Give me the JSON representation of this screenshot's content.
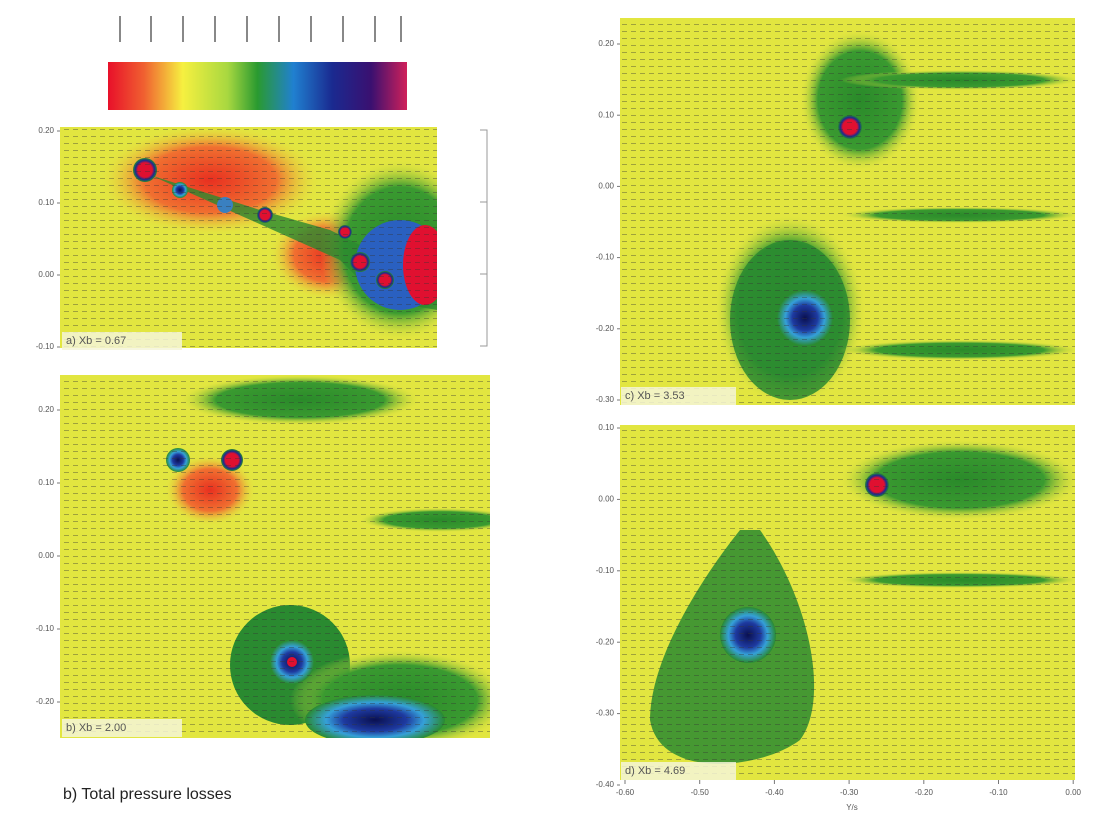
{
  "panels": [
    {
      "label": "a)  Xb = 0.67",
      "yticks": [
        "0.20",
        "0.10",
        "0.00",
        "-0.10"
      ]
    },
    {
      "label": "b)  Xb = 2.00",
      "yticks": [
        "0.20",
        "0.10",
        "0.00",
        "-0.10",
        "-0.20"
      ]
    },
    {
      "label": "c)  Xb = 3.53",
      "yticks": [
        "0.20",
        "0.10",
        "0.00",
        "-0.10",
        "-0.20",
        "-0.30"
      ]
    },
    {
      "label": "d)  Xb = 4.69",
      "yticks": [
        "0.10",
        "0.00",
        "-0.10",
        "-0.20",
        "-0.30",
        "-0.40"
      ],
      "xticks": [
        "-0.60",
        "-0.50",
        "-0.40",
        "-0.30",
        "-0.20",
        "-0.10",
        "0.00"
      ],
      "xlabel": "Y/s"
    }
  ],
  "caption": "b) Total pressure losses"
}
